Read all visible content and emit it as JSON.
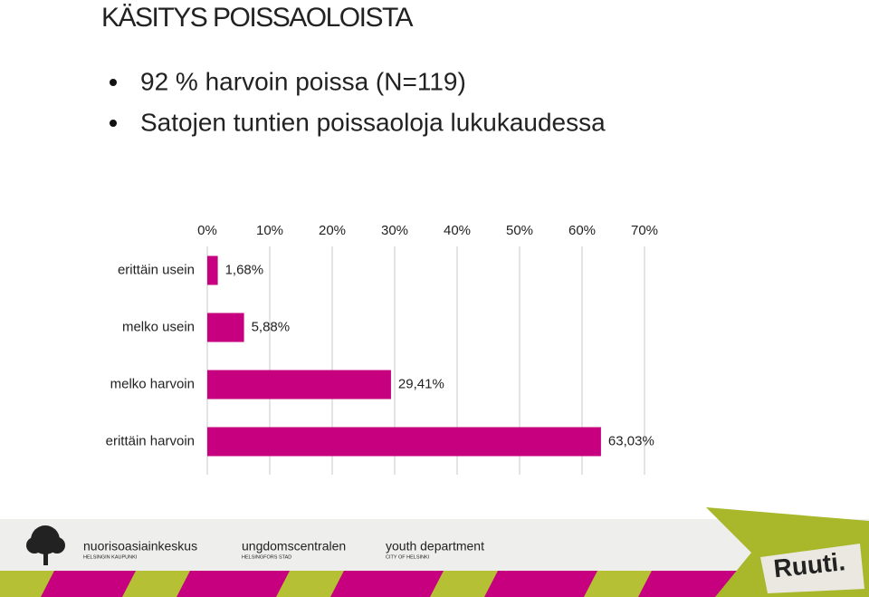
{
  "header": {
    "title": "KÄSITYS  POISSAOLOISTA",
    "bullets": [
      "92 % harvoin poissa (N=119)",
      "Satojen tuntien poissaoloja lukukaudessa"
    ]
  },
  "chart_data": {
    "type": "barh",
    "categories": [
      "erittäin usein",
      "melko usein",
      "melko harvoin",
      "erittäin harvoin"
    ],
    "values": [
      1.68,
      5.88,
      29.41,
      63.03
    ],
    "value_labels": [
      "1,68%",
      "5,88%",
      "29,41%",
      "63,03%"
    ],
    "color": "#c6007e",
    "xlim": [
      0,
      70
    ],
    "xticks": [
      {
        "value": 0,
        "label": "0%"
      },
      {
        "value": 10,
        "label": "10%"
      },
      {
        "value": 20,
        "label": "20%"
      },
      {
        "value": 30,
        "label": "30%"
      },
      {
        "value": 40,
        "label": "40%"
      },
      {
        "value": 50,
        "label": "50%"
      },
      {
        "value": 60,
        "label": "60%"
      },
      {
        "value": 70,
        "label": "70%"
      }
    ],
    "grid": true
  },
  "footer": {
    "logos": [
      {
        "name": "nuorisoasiainkeskus",
        "sub": "HELSINGIN KAUPUNKI"
      },
      {
        "name": "ungdomscentralen",
        "sub": "HELSINGFORS STAD"
      },
      {
        "name": "youth department",
        "sub": "CITY OF HELSINKI"
      }
    ],
    "brand": "Ruuti."
  }
}
